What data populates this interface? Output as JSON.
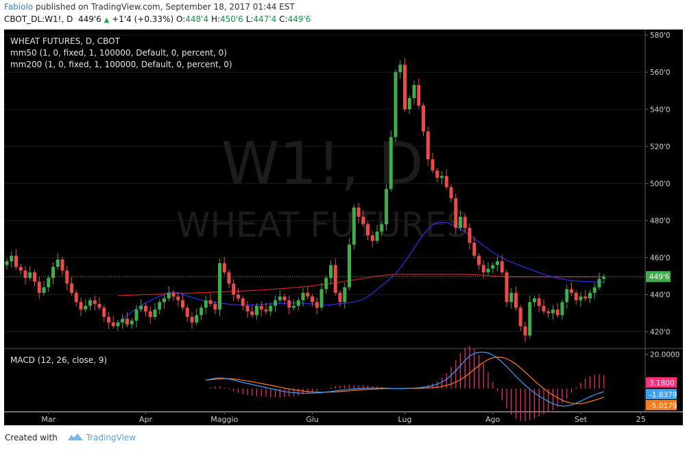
{
  "header": {
    "author": "Fabiolo",
    "published_text": "published on TradingView.com, September 18, 2017 01:44 EST",
    "symbol": "CBOT_DL:W1!, D",
    "last": "449'6",
    "change": "+1'4 (+0.33%)",
    "open_label": "O:",
    "open": "448'4",
    "high_label": "H:",
    "high": "450'6",
    "low_label": "L:",
    "low": "447'4",
    "close_label": "C:",
    "close": "449'6"
  },
  "legend": {
    "title": "WHEAT FUTURES, D, CBOT",
    "ma50": "mm50 (1, 0, fixed, 1, 100000, Default, 0, percent, 0)",
    "ma200": "mm200 (1, 0, fixed, 1, 100000, Default, 0, percent, 0)",
    "macd": "MACD (12, 26, close, 9)"
  },
  "watermark": {
    "symbol": "W1!, D",
    "name": "WHEAT FUTURES"
  },
  "footer": {
    "created_with": "Created with",
    "brand": "TradingView"
  },
  "colors": {
    "background": "#000000",
    "up": "#3fae49",
    "down": "#ee4a4a",
    "ma50": "#2d2de8",
    "ma200": "#d61f1f",
    "macd_line": "#3aa0ff",
    "signal_line": "#ff7a1a",
    "histogram": "#ff2d7a",
    "price_label_bg": "#3fae49",
    "author": "#3c7ed1"
  },
  "chart_data": [
    {
      "type": "candlestick",
      "title": "WHEAT FUTURES, D, CBOT",
      "x_axis_labels": [
        "Mar",
        "Apr",
        "Maggio",
        "Giu",
        "Lug",
        "Ago",
        "Set",
        "25"
      ],
      "y_ticks": [
        "420'0",
        "440'0",
        "460'0",
        "480'0",
        "500'0",
        "520'0",
        "540'0",
        "560'0",
        "580'0"
      ],
      "ylim": [
        411,
        583
      ],
      "current_price": 449.75,
      "current_price_label": "449'6",
      "closes": [
        458,
        461,
        455,
        453,
        449,
        452,
        447,
        441,
        444,
        449,
        455,
        459,
        453,
        446,
        441,
        436,
        432,
        434,
        437,
        435,
        433,
        428,
        425,
        423,
        425,
        427,
        424,
        426,
        432,
        434,
        431,
        428,
        432,
        436,
        438,
        441,
        439,
        437,
        433,
        428,
        425,
        429,
        433,
        437,
        435,
        432,
        457,
        452,
        446,
        440,
        438,
        434,
        431,
        429,
        434,
        432,
        431,
        434,
        437,
        439,
        437,
        433,
        434,
        437,
        441,
        439,
        436,
        433,
        443,
        449,
        456,
        441,
        436,
        444,
        467,
        487,
        482,
        478,
        472,
        469,
        474,
        478,
        497,
        525,
        560,
        564,
        540,
        546,
        553,
        542,
        528,
        513,
        507,
        503,
        504,
        498,
        492,
        476,
        482,
        476,
        468,
        461,
        456,
        452,
        454,
        456,
        458,
        452,
        436,
        441,
        433,
        423,
        418,
        436,
        438,
        434,
        431,
        430,
        432,
        429,
        436,
        443,
        441,
        437,
        439,
        438,
        441,
        444,
        448.5,
        449.75
      ],
      "ma50": [
        424.4,
        426.7,
        428.8,
        430.7,
        432.4,
        434.2,
        435.7,
        436.8,
        438.0,
        439.2,
        440.3,
        441.3,
        441.5,
        441.0,
        440.2,
        439.3,
        438.5,
        437.8,
        437.1,
        436.6,
        436.2,
        435.9,
        435.5,
        435.2,
        434.9,
        434.7,
        434.6,
        434.5,
        434.5,
        434.5,
        434.6,
        434.8,
        435.0,
        435.1,
        435.2,
        435.2,
        435.3,
        435.5,
        435.6,
        435.5,
        435.4,
        435.2,
        435.0,
        434.8,
        434.6,
        434.3,
        434.5,
        434.9,
        435.2,
        435.4,
        435.6,
        436.1,
        436.7,
        437.6,
        439.0,
        440.8,
        442.8,
        444.9,
        446.9,
        449.0,
        451.4,
        454.3,
        457.7,
        461.3,
        465.2,
        468.9,
        472.3,
        475.3,
        477.6,
        478.7,
        479.1,
        478.8,
        478.0,
        476.8,
        475.4,
        473.9,
        472.2,
        470.2,
        468.3,
        466.5,
        464.7,
        462.9,
        461.3,
        459.9,
        458.7,
        457.6,
        456.6,
        455.6,
        454.6,
        453.7,
        452.8,
        451.9,
        451.0,
        450.2,
        449.5,
        448.9,
        448.4,
        448.0,
        447.6,
        447.4,
        447.2,
        447.1,
        447.0,
        446.9,
        446.8,
        446.7
      ],
      "ma200": [
        439.5,
        439.6,
        439.7,
        439.8,
        439.9,
        440.0,
        440.1,
        440.1,
        440.2,
        440.3,
        440.4,
        440.5,
        440.6,
        440.7,
        440.8,
        440.8,
        440.9,
        441.0,
        441.1,
        441.2,
        441.3,
        441.4,
        441.5,
        441.6,
        441.7,
        441.8,
        441.9,
        442.0,
        442.1,
        442.3,
        442.4,
        442.5,
        442.7,
        442.9,
        443.0,
        443.2,
        443.4,
        443.6,
        443.8,
        444.0,
        444.3,
        444.5,
        444.8,
        445.1,
        445.4,
        445.7,
        446.0,
        446.4,
        446.8,
        447.2,
        447.6,
        448.0,
        448.4,
        448.8,
        449.2,
        449.6,
        450.0,
        450.3,
        450.6,
        450.8,
        451.0,
        451.0,
        451.0,
        451.0,
        451.0,
        451.0,
        451.0,
        451.0,
        451.0,
        451.0,
        451.0,
        451.0,
        451.0,
        451.0,
        451.0,
        451.0,
        450.9,
        450.8,
        450.6,
        450.5,
        450.3,
        450.1,
        449.9,
        449.8,
        449.7,
        449.6,
        449.6,
        449.6,
        449.6,
        449.6,
        449.6,
        449.6,
        449.6,
        449.6,
        449.6,
        449.6,
        449.6,
        449.6,
        449.6,
        449.6,
        449.6,
        449.6,
        449.6,
        449.6,
        449.6,
        449.6
      ]
    },
    {
      "type": "line",
      "title": "MACD (12, 26, close, 9)",
      "y_ticks": [
        "20.0000"
      ],
      "ylim": [
        -13,
        23
      ],
      "value_labels": [
        {
          "text": "3.1800",
          "color": "#ff2d7a"
        },
        {
          "text": "-1.8379",
          "color": "#3aa0ff"
        },
        {
          "text": "-5.0179",
          "color": "#ff7a1a"
        }
      ],
      "macd": [
        5.0,
        5.5,
        6.0,
        6.2,
        6.0,
        5.6,
        5.0,
        4.3,
        3.6,
        3.0,
        2.4,
        1.8,
        1.2,
        0.6,
        0.0,
        -0.6,
        -1.2,
        -1.7,
        -2.1,
        -2.4,
        -2.6,
        -2.7,
        -2.7,
        -2.6,
        -2.5,
        -2.3,
        -2.0,
        -1.7,
        -1.3,
        -1.0,
        -0.7,
        -0.4,
        -0.2,
        0.0,
        0.2,
        0.3,
        0.3,
        0.3,
        0.3,
        0.2,
        0.1,
        0.0,
        0.0,
        0.1,
        0.2,
        0.3,
        0.5,
        0.8,
        1.2,
        1.8,
        2.6,
        3.8,
        5.5,
        7.8,
        10.5,
        13.5,
        16.5,
        19.0,
        20.5,
        21.2,
        21.3,
        20.8,
        19.6,
        17.8,
        15.5,
        12.8,
        10.0,
        7.2,
        4.5,
        2.0,
        -0.3,
        -2.4,
        -4.3,
        -6.0,
        -7.5,
        -8.8,
        -9.7,
        -10.2,
        -10.1,
        -9.5,
        -8.5,
        -7.3,
        -6.0,
        -4.7,
        -3.6,
        -2.6,
        -1.8
      ],
      "signal": [
        5.0,
        5.2,
        5.5,
        5.7,
        5.8,
        5.8,
        5.6,
        5.3,
        4.9,
        4.5,
        4.0,
        3.5,
        3.0,
        2.5,
        2.0,
        1.4,
        0.9,
        0.3,
        -0.2,
        -0.6,
        -1.0,
        -1.4,
        -1.7,
        -1.9,
        -2.0,
        -2.1,
        -2.1,
        -2.0,
        -1.9,
        -1.7,
        -1.5,
        -1.3,
        -1.0,
        -0.8,
        -0.6,
        -0.4,
        -0.3,
        -0.2,
        -0.1,
        0.0,
        0.0,
        0.0,
        0.0,
        0.0,
        0.1,
        0.1,
        0.2,
        0.3,
        0.4,
        0.6,
        0.9,
        1.3,
        1.9,
        2.7,
        3.8,
        5.2,
        7.0,
        9.0,
        11.2,
        13.4,
        15.4,
        17.0,
        18.0,
        18.4,
        18.2,
        17.4,
        16.0,
        14.2,
        12.0,
        9.6,
        7.1,
        4.6,
        2.2,
        0.0,
        -2.0,
        -3.8,
        -5.4,
        -6.8,
        -7.8,
        -8.5,
        -8.8,
        -8.7,
        -8.3,
        -7.6,
        -6.8,
        -5.9,
        -5.0
      ]
    }
  ]
}
